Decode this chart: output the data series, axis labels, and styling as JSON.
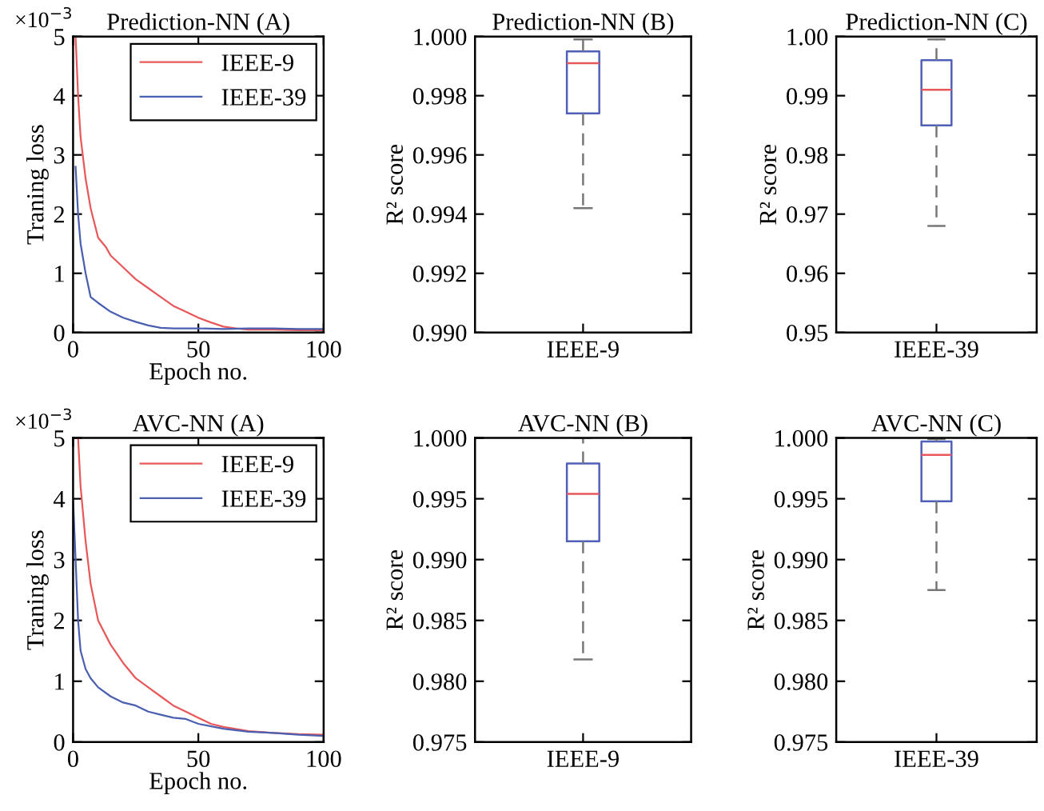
{
  "chart_data": [
    {
      "type": "line",
      "title": "Prediction-NN (A)",
      "annotations": [
        "×10$^{−3}$"
      ],
      "xlabel": "Epoch no.",
      "ylabel": "Traning loss",
      "xlim": [
        0,
        100
      ],
      "xticks": [
        0,
        50,
        100
      ],
      "ylim": [
        0,
        5
      ],
      "yticks": [
        0,
        1,
        2,
        3,
        4,
        5
      ],
      "legend": "top right",
      "grid": false,
      "series": [
        {
          "name": "IEEE-9",
          "color": "#e8585a",
          "x": [
            1,
            2,
            3,
            5,
            7,
            10,
            13,
            15,
            20,
            25,
            30,
            35,
            40,
            45,
            50,
            55,
            60,
            65,
            70,
            80,
            90,
            100
          ],
          "values": [
            5.0,
            4.0,
            3.3,
            2.6,
            2.1,
            1.6,
            1.45,
            1.3,
            1.1,
            0.9,
            0.75,
            0.6,
            0.45,
            0.35,
            0.25,
            0.17,
            0.1,
            0.07,
            0.05,
            0.05,
            0.04,
            0.04
          ]
        },
        {
          "name": "IEEE-39",
          "color": "#4a5fb0",
          "x": [
            1,
            2,
            3,
            5,
            7,
            10,
            15,
            20,
            25,
            30,
            35,
            40,
            50,
            60,
            70,
            80,
            90,
            100
          ],
          "values": [
            2.8,
            2.0,
            1.5,
            1.0,
            0.6,
            0.5,
            0.35,
            0.25,
            0.18,
            0.12,
            0.08,
            0.07,
            0.07,
            0.06,
            0.07,
            0.07,
            0.06,
            0.06
          ]
        }
      ]
    },
    {
      "type": "box",
      "title": "Prediction-NN (B)",
      "ylabel": "R² score",
      "categories": [
        "IEEE-9"
      ],
      "ylim": [
        0.99,
        1.0
      ],
      "yticks": [
        {
          "value": 0.99,
          "label": "0.990"
        },
        {
          "value": 0.992,
          "label": "0.992"
        },
        {
          "value": 0.994,
          "label": "0.994"
        },
        {
          "value": 0.996,
          "label": "0.996"
        },
        {
          "value": 0.998,
          "label": "0.998"
        },
        {
          "value": 1.0,
          "label": "1.000"
        }
      ],
      "grid": false,
      "boxes": [
        {
          "low": 0.9942,
          "q1": 0.9974,
          "median": 0.9991,
          "q3": 0.9995,
          "high": 0.9999
        }
      ]
    },
    {
      "type": "box",
      "title": "Prediction-NN (C)",
      "ylabel": "R² score",
      "categories": [
        "IEEE-39"
      ],
      "ylim": [
        0.95,
        1.0
      ],
      "yticks": [
        {
          "value": 0.95,
          "label": "0.95"
        },
        {
          "value": 0.96,
          "label": "0.96"
        },
        {
          "value": 0.97,
          "label": "0.97"
        },
        {
          "value": 0.98,
          "label": "0.98"
        },
        {
          "value": 0.99,
          "label": "0.99"
        },
        {
          "value": 1.0,
          "label": "1.00"
        }
      ],
      "grid": false,
      "boxes": [
        {
          "low": 0.968,
          "q1": 0.985,
          "median": 0.991,
          "q3": 0.996,
          "high": 0.9995
        }
      ]
    },
    {
      "type": "line",
      "title": "AVC-NN (A)",
      "annotations": [
        "×10$^{−3}$"
      ],
      "xlabel": "Epoch no.",
      "ylabel": "Traning loss",
      "xlim": [
        0,
        100
      ],
      "xticks": [
        0,
        50,
        100
      ],
      "ylim": [
        0,
        5
      ],
      "yticks": [
        0,
        1,
        2,
        3,
        4,
        5
      ],
      "legend": "top right",
      "grid": false,
      "series": [
        {
          "name": "IEEE-9",
          "color": "#e8585a",
          "x": [
            2,
            3,
            5,
            7,
            10,
            15,
            20,
            25,
            30,
            35,
            40,
            45,
            50,
            55,
            60,
            70,
            80,
            90,
            100
          ],
          "values": [
            5.0,
            4.2,
            3.3,
            2.6,
            2.0,
            1.6,
            1.3,
            1.05,
            0.9,
            0.75,
            0.6,
            0.5,
            0.4,
            0.3,
            0.25,
            0.18,
            0.15,
            0.13,
            0.12
          ]
        },
        {
          "name": "IEEE-39",
          "color": "#4a5fb0",
          "x": [
            0,
            1,
            2,
            3,
            5,
            7,
            10,
            15,
            20,
            25,
            30,
            35,
            40,
            45,
            50,
            60,
            70,
            80,
            90,
            100
          ],
          "values": [
            4.0,
            3.0,
            2.0,
            1.5,
            1.2,
            1.05,
            0.9,
            0.75,
            0.65,
            0.6,
            0.5,
            0.45,
            0.4,
            0.38,
            0.3,
            0.22,
            0.17,
            0.15,
            0.12,
            0.1
          ]
        }
      ]
    },
    {
      "type": "box",
      "title": "AVC-NN (B)",
      "ylabel": "R² score",
      "categories": [
        "IEEE-9"
      ],
      "ylim": [
        0.975,
        1.0
      ],
      "yticks": [
        {
          "value": 0.975,
          "label": "0.975"
        },
        {
          "value": 0.98,
          "label": "0.980"
        },
        {
          "value": 0.985,
          "label": "0.985"
        },
        {
          "value": 0.99,
          "label": "0.990"
        },
        {
          "value": 0.995,
          "label": "0.995"
        },
        {
          "value": 1.0,
          "label": "1.000"
        }
      ],
      "grid": false,
      "boxes": [
        {
          "low": 0.9818,
          "q1": 0.9915,
          "median": 0.9954,
          "q3": 0.9979,
          "high": 1.0
        }
      ]
    },
    {
      "type": "box",
      "title": "AVC-NN (C)",
      "ylabel": "R² score",
      "categories": [
        "IEEE-39"
      ],
      "ylim": [
        0.975,
        1.0
      ],
      "yticks": [
        {
          "value": 0.975,
          "label": "0.975"
        },
        {
          "value": 0.98,
          "label": "0.980"
        },
        {
          "value": 0.985,
          "label": "0.985"
        },
        {
          "value": 0.99,
          "label": "0.990"
        },
        {
          "value": 0.995,
          "label": "0.995"
        },
        {
          "value": 1.0,
          "label": "1.000"
        }
      ],
      "grid": false,
      "boxes": [
        {
          "low": 0.9875,
          "q1": 0.9948,
          "median": 0.9986,
          "q3": 0.9997,
          "high": 0.9999
        }
      ]
    }
  ]
}
